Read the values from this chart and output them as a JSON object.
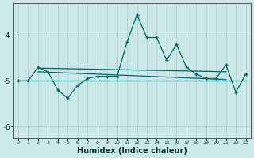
{
  "xlabel": "Humidex (Indice chaleur)",
  "background_color": "#cce8e8",
  "line_color": "#006666",
  "xlim": [
    -0.5,
    23.5
  ],
  "ylim": [
    -6.25,
    -3.3
  ],
  "yticks": [
    -6,
    -5,
    -4
  ],
  "xticks": [
    0,
    1,
    2,
    3,
    4,
    5,
    6,
    7,
    8,
    9,
    10,
    11,
    12,
    13,
    14,
    15,
    16,
    17,
    18,
    19,
    20,
    21,
    22,
    23
  ],
  "main_series_x": [
    0,
    1,
    2,
    3,
    4,
    5,
    6,
    7,
    8,
    9,
    10,
    11,
    12,
    13,
    14,
    15,
    16,
    17,
    18,
    19,
    20,
    21,
    22,
    23
  ],
  "main_series_y": [
    -5.0,
    -5.0,
    -4.7,
    -4.8,
    -5.2,
    -5.38,
    -5.1,
    -4.95,
    -4.9,
    -4.9,
    -4.9,
    -4.15,
    -3.55,
    -4.05,
    -4.05,
    -4.55,
    -4.2,
    -4.7,
    -4.85,
    -4.95,
    -4.95,
    -4.65,
    -5.25,
    -4.85
  ],
  "regression_line1_x": [
    2,
    21
  ],
  "regression_line1_y": [
    -4.72,
    -4.8
  ],
  "regression_line2_x": [
    2,
    21
  ],
  "regression_line2_y": [
    -4.8,
    -4.97
  ],
  "hline_y": -5.0,
  "hline_x_start": 0,
  "hline_x_end": 23,
  "grid_color": "#aacccc",
  "xlabel_fontsize": 7,
  "ytick_fontsize": 6,
  "xtick_fontsize": 4.5
}
